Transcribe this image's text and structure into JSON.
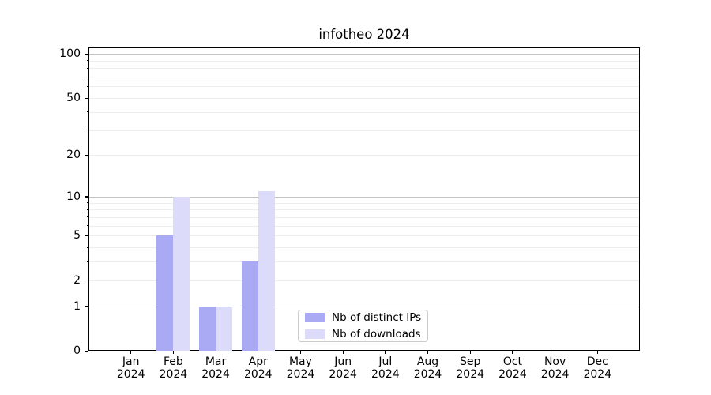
{
  "chart_data": {
    "type": "bar",
    "title": "infotheo 2024",
    "categories": [
      "Jan",
      "Feb",
      "Mar",
      "Apr",
      "May",
      "Jun",
      "Jul",
      "Aug",
      "Sep",
      "Oct",
      "Nov",
      "Dec"
    ],
    "year_label": "2024",
    "series": [
      {
        "name": "Nb of distinct IPs",
        "color": "#aaaaf4",
        "values": [
          0,
          5,
          1,
          3,
          0,
          0,
          0,
          0,
          0,
          0,
          0,
          0
        ]
      },
      {
        "name": "Nb of downloads",
        "color": "#dcdcfa",
        "values": [
          0,
          10,
          1,
          11,
          0,
          0,
          0,
          0,
          0,
          0,
          0,
          0
        ]
      }
    ],
    "xlabel": "",
    "ylabel": "",
    "scale": "log1p",
    "ylim": [
      0,
      111
    ],
    "yticks_labeled": [
      0,
      1,
      2,
      5,
      10,
      20,
      50,
      100
    ],
    "yticks_minor": [
      3,
      4,
      6,
      7,
      8,
      9,
      30,
      40,
      60,
      70,
      80,
      90
    ],
    "gridlines_major": [
      1,
      10,
      100
    ],
    "gridlines_minor": [
      2,
      3,
      4,
      5,
      6,
      7,
      8,
      9,
      20,
      30,
      40,
      50,
      60,
      70,
      80,
      90
    ],
    "grid": true,
    "legend_position": "lower center"
  }
}
